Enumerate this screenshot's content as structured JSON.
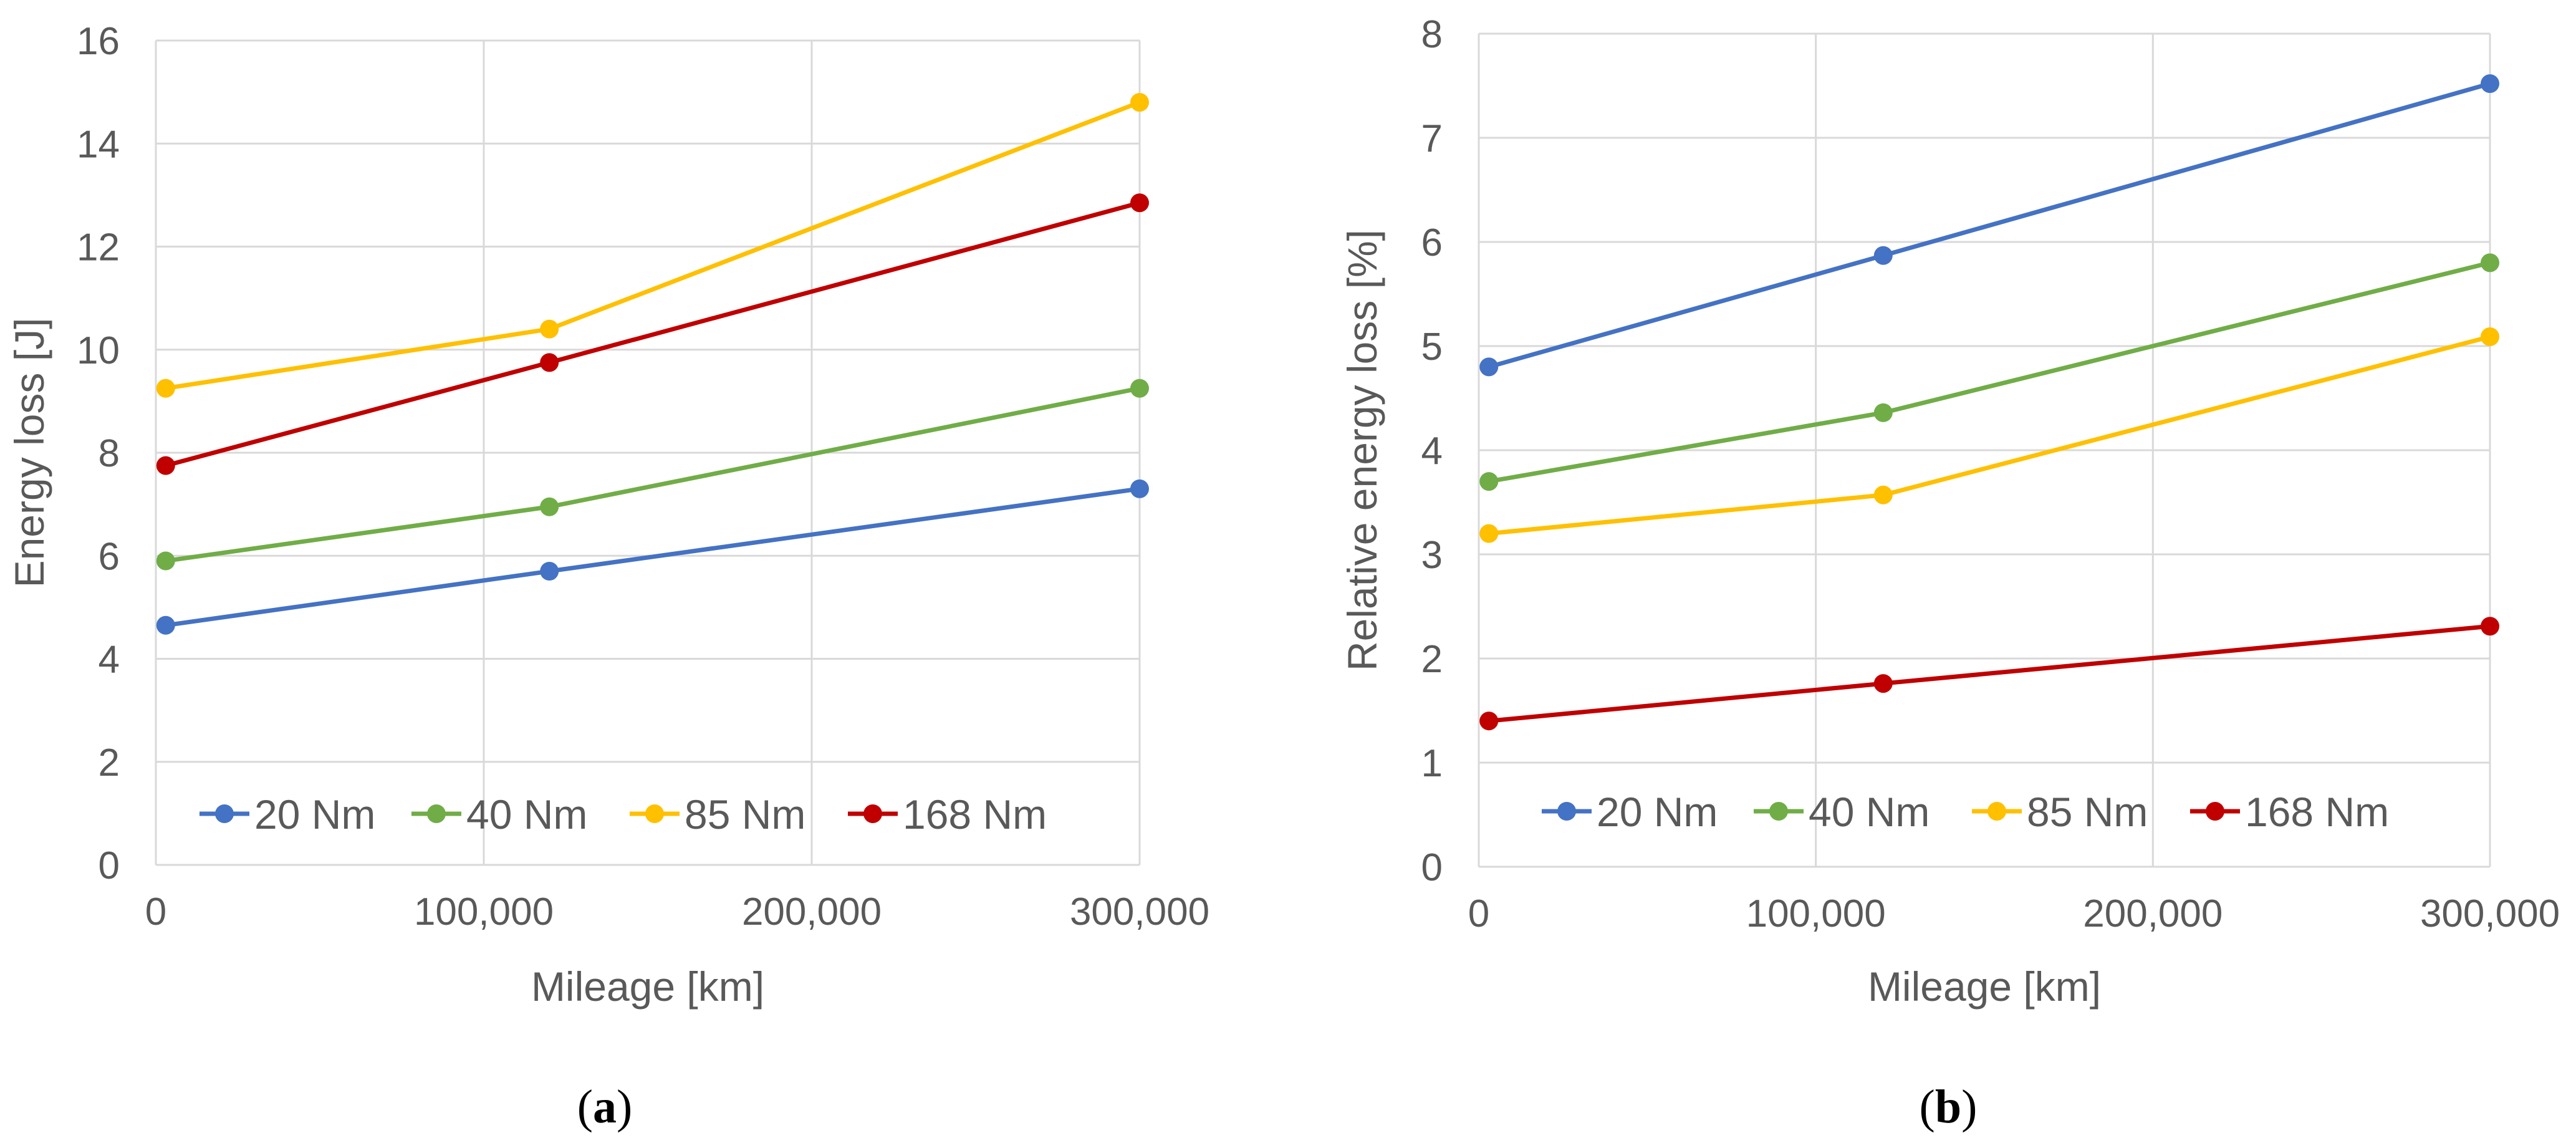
{
  "figure": {
    "panels": [
      {
        "label_open": "(",
        "label_letter": "a",
        "label_close": ")"
      },
      {
        "label_open": "(",
        "label_letter": "b",
        "label_close": ")"
      }
    ]
  },
  "chart_data": [
    {
      "type": "line",
      "title": "",
      "xlabel": "Mileage [km]",
      "ylabel": "Energy loss [J]",
      "xlim": [
        0,
        300000
      ],
      "ylim": [
        0,
        16
      ],
      "xticks": [
        0,
        100000,
        200000,
        300000
      ],
      "xtick_labels": [
        "0",
        "100,000",
        "200,000",
        "300,000"
      ],
      "yticks": [
        0,
        2,
        4,
        6,
        8,
        10,
        12,
        14,
        16
      ],
      "ytick_labels": [
        "0",
        "2",
        "4",
        "6",
        "8",
        "10",
        "12",
        "14",
        "16"
      ],
      "grid": true,
      "legend_position": "bottom",
      "x": [
        3000,
        120000,
        300000
      ],
      "series": [
        {
          "name": "20 Nm",
          "color": "#4472c4",
          "values": [
            4.65,
            5.7,
            7.3
          ]
        },
        {
          "name": "40 Nm",
          "color": "#70ad47",
          "values": [
            5.9,
            6.95,
            9.25
          ]
        },
        {
          "name": "85 Nm",
          "color": "#ffc000",
          "values": [
            9.25,
            10.4,
            14.8
          ]
        },
        {
          "name": "168 Nm",
          "color": "#c00000",
          "values": [
            7.75,
            9.75,
            12.85
          ]
        }
      ]
    },
    {
      "type": "line",
      "title": "",
      "xlabel": "Mileage [km]",
      "ylabel": "Relative energy loss [%]",
      "xlim": [
        0,
        300000
      ],
      "ylim": [
        0,
        8
      ],
      "xticks": [
        0,
        100000,
        200000,
        300000
      ],
      "xtick_labels": [
        "0",
        "100,000",
        "200,000",
        "300,000"
      ],
      "yticks": [
        0,
        1,
        2,
        3,
        4,
        5,
        6,
        7,
        8
      ],
      "ytick_labels": [
        "0",
        "1",
        "2",
        "3",
        "4",
        "5",
        "6",
        "7",
        "8"
      ],
      "grid": true,
      "legend_position": "bottom",
      "x": [
        3000,
        120000,
        300000
      ],
      "series": [
        {
          "name": "20 Nm",
          "color": "#4472c4",
          "values": [
            4.8,
            5.87,
            7.52
          ]
        },
        {
          "name": "40 Nm",
          "color": "#70ad47",
          "values": [
            3.7,
            4.36,
            5.8
          ]
        },
        {
          "name": "85 Nm",
          "color": "#ffc000",
          "values": [
            3.2,
            3.57,
            5.09
          ]
        },
        {
          "name": "168 Nm",
          "color": "#c00000",
          "values": [
            1.4,
            1.76,
            2.31
          ]
        }
      ]
    }
  ]
}
